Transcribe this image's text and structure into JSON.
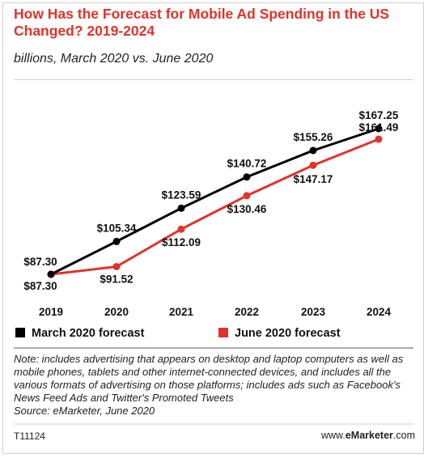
{
  "chart_data": {
    "type": "line",
    "title": "How Has the Forecast for Mobile Ad Spending in the US Changed? 2019-2024",
    "subtitle": "billions, March 2020 vs. June 2020",
    "x": [
      "2019",
      "2020",
      "2021",
      "2022",
      "2023",
      "2024"
    ],
    "series": [
      {
        "name": "March 2020 forecast",
        "color": "#000000",
        "values": [
          87.3,
          105.34,
          123.59,
          140.72,
          155.26,
          167.25
        ],
        "labels": [
          "$87.30",
          "$105.34",
          "$123.59",
          "$140.72",
          "$155.26",
          "$167.25"
        ]
      },
      {
        "name": "June 2020 forecast",
        "color": "#e0332a",
        "values": [
          87.3,
          91.52,
          112.09,
          130.46,
          147.17,
          161.49
        ],
        "labels": [
          "$87.30",
          "$91.52",
          "$112.09",
          "$130.46",
          "$147.17",
          "$161.49"
        ]
      }
    ],
    "legend": "bottom",
    "grid": false
  },
  "footer": {
    "note": "Note: includes advertising that appears on desktop and laptop computers as well as mobile phones, tablets and other internet-connected devices, and includes all the various formats of advertising on those platforms; includes ads such as Facebook's News Feed Ads and Twitter's Promoted Tweets",
    "source": "Source: eMarketer, June 2020",
    "code": "T11124",
    "site_prefix": "www.",
    "site_brand": "eMarketer",
    "site_suffix": ".com"
  }
}
